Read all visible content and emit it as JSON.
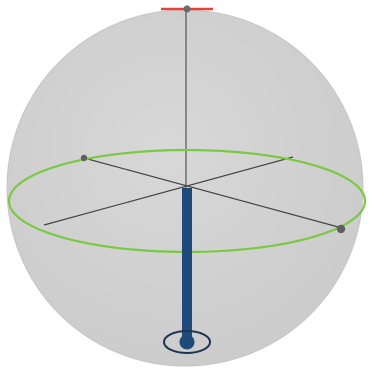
{
  "colors": {
    "background": "#ffffff",
    "sphere_fill": "#d2d2d2",
    "sphere_edge": "#c6c6c6",
    "equator": "#7ac943",
    "axis_line": "#444444",
    "axis_point": "#6b6b6b",
    "top_marker": "#e8403a",
    "state_vector": "#1e4b79",
    "state_target": "#1e3550"
  },
  "icons": {
    "sphere": "bloch-sphere-icon",
    "vector": "state-vector-icon"
  },
  "state": {
    "description_value": "south pole",
    "polar_angle_deg": 180,
    "azimuth_deg": 0
  }
}
